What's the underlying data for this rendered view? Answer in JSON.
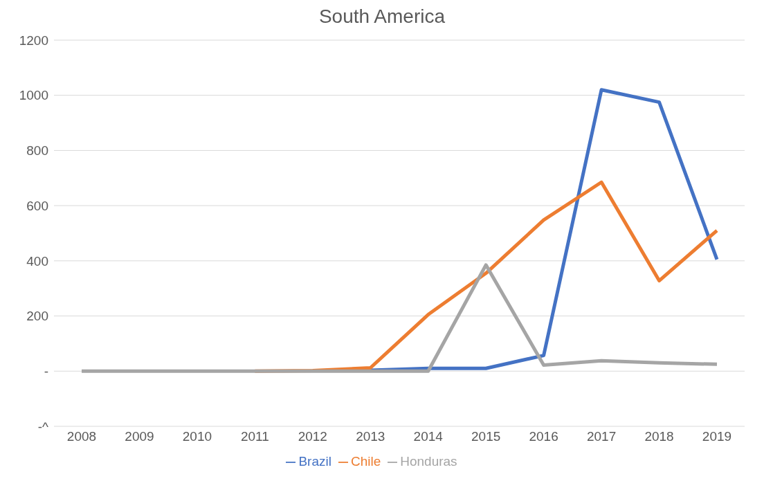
{
  "chart_data": {
    "type": "line",
    "title": "South America",
    "categories": [
      "2008",
      "2009",
      "2010",
      "2011",
      "2012",
      "2013",
      "2014",
      "2015",
      "2016",
      "2017",
      "2018",
      "2019"
    ],
    "series": [
      {
        "name": "Brazil",
        "color": "#4472c4",
        "values": [
          null,
          null,
          null,
          null,
          null,
          3,
          10,
          10,
          57,
          1020,
          975,
          405
        ]
      },
      {
        "name": "Chile",
        "color": "#ed7d31",
        "values": [
          null,
          null,
          null,
          0,
          2,
          12,
          205,
          355,
          548,
          685,
          328,
          510
        ]
      },
      {
        "name": "Honduras",
        "color": "#a5a5a5",
        "values": [
          0,
          0,
          0,
          0,
          0,
          0,
          0,
          385,
          22,
          38,
          30,
          25
        ]
      }
    ],
    "ylim": [
      -200,
      1200
    ],
    "yticks": [
      {
        "value": -200,
        "label": "-^"
      },
      {
        "value": 0,
        "label": "-"
      },
      200,
      400,
      600,
      800,
      1000,
      1200
    ],
    "grid": "y",
    "legend": "bottom",
    "marker": "none",
    "line_style": "solid"
  }
}
